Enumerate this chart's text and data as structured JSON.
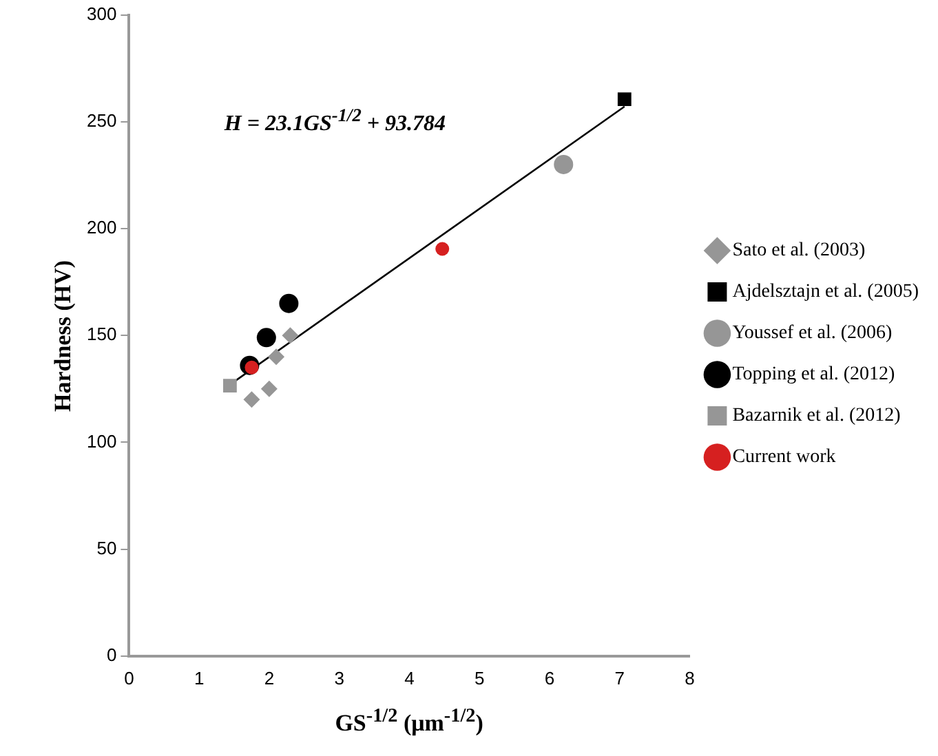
{
  "chart_data": {
    "type": "scatter",
    "xlabel": "GS$^{-1/2}$ (μm$^{-1/2}$)",
    "ylabel": "Hardness (HV)",
    "xlim": [
      0,
      8
    ],
    "xticks": [
      0,
      1,
      2,
      3,
      4,
      5,
      6,
      7,
      8
    ],
    "ylim": [
      0,
      300
    ],
    "yticks": [
      0,
      50,
      100,
      150,
      200,
      250,
      300
    ],
    "grid": false,
    "legend": "right",
    "annotations": [
      "H = 23.1GS$^{-1/2}$ + 93.784"
    ],
    "series": [
      {
        "name": "Sato et al. (2003)",
        "color": "#969696",
        "marker": "diamond",
        "x": [
          1.75,
          2.0,
          2.1,
          2.3
        ],
        "values": [
          120,
          125,
          140,
          150
        ]
      },
      {
        "name": "Ajdelsztajn et al. (2005)",
        "color": "#000000",
        "marker": "square",
        "x": [
          7.07
        ],
        "values": [
          260.5
        ]
      },
      {
        "name": "Youssef et al. (2006)",
        "color": "#969696",
        "marker": "circle",
        "x": [
          6.2
        ],
        "values": [
          230
        ]
      },
      {
        "name": "Topping et al. (2012)",
        "color": "#000000",
        "marker": "circle",
        "x": [
          1.72,
          1.96,
          2.28
        ],
        "values": [
          136,
          149,
          165
        ]
      },
      {
        "name": "Bazarnik et al. (2012)",
        "color": "#969696",
        "marker": "square",
        "x": [
          1.44
        ],
        "values": [
          126.5
        ]
      },
      {
        "name": "Current work",
        "color": "#d62020",
        "marker": "circle",
        "x": [
          1.75,
          4.47
        ],
        "values": [
          135,
          190.5
        ]
      },
      {
        "type": "line",
        "color": "#000000",
        "marker": "none",
        "x": [
          1.44,
          7.07
        ],
        "values": [
          127.0,
          257.1
        ]
      }
    ]
  }
}
